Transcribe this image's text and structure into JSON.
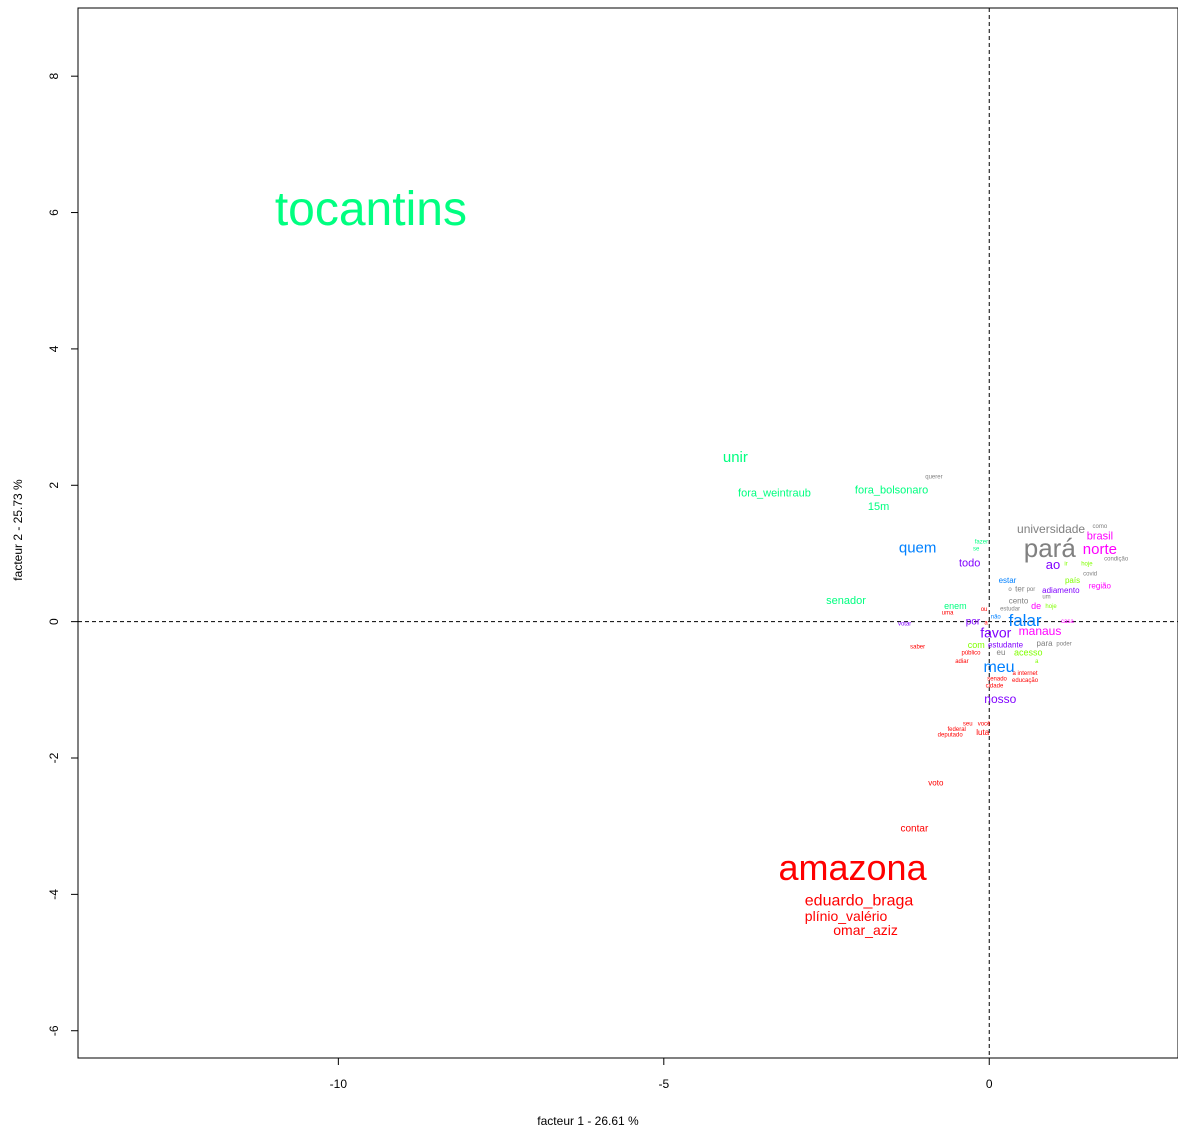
{
  "chart_data": {
    "type": "scatter",
    "xlabel": "facteur  1  - 26.61 %",
    "ylabel": "facteur  2  - 25.73 %",
    "xlim": [
      -14,
      2.9
    ],
    "ylim": [
      -6.4,
      9.0
    ],
    "xticks": [
      "-10",
      "-5",
      "0"
    ],
    "yticks": [
      "-6",
      "-4",
      "-2",
      "0",
      "2",
      "4",
      "6",
      "8"
    ],
    "grid": false,
    "reference_lines": [
      0,
      0
    ],
    "colors": {
      "red": "#ff0000",
      "green": "#00ff80",
      "blue": "#0080ff",
      "purple": "#8000ff",
      "magenta": "#ff00ff",
      "gray": "#808080",
      "lightgreen": "#80ff00"
    },
    "words": [
      {
        "label": "tocantins",
        "x": -9.5,
        "y": 6.0,
        "size": 48,
        "color": "#00ff80"
      },
      {
        "label": "unir",
        "x": -3.9,
        "y": 2.4,
        "size": 15,
        "color": "#00ff80"
      },
      {
        "label": "fora_weintraub",
        "x": -3.3,
        "y": 1.88,
        "size": 11,
        "color": "#00ff80"
      },
      {
        "label": "fora_bolsonaro",
        "x": -1.5,
        "y": 1.92,
        "size": 11,
        "color": "#00ff80"
      },
      {
        "label": "15m",
        "x": -1.7,
        "y": 1.68,
        "size": 11,
        "color": "#00ff80"
      },
      {
        "label": "querer",
        "x": -0.85,
        "y": 2.12,
        "size": 6,
        "color": "#808080"
      },
      {
        "label": "quem",
        "x": -1.1,
        "y": 1.07,
        "size": 15,
        "color": "#0080ff"
      },
      {
        "label": "fazer",
        "x": -0.12,
        "y": 1.17,
        "size": 6,
        "color": "#00ff80"
      },
      {
        "label": "se",
        "x": -0.2,
        "y": 1.07,
        "size": 6,
        "color": "#00ff80"
      },
      {
        "label": "todo",
        "x": -0.3,
        "y": 0.85,
        "size": 11,
        "color": "#8000ff"
      },
      {
        "label": "universidade",
        "x": 0.95,
        "y": 1.35,
        "size": 12,
        "color": "#808080"
      },
      {
        "label": "como",
        "x": 1.7,
        "y": 1.4,
        "size": 6,
        "color": "#808080"
      },
      {
        "label": "brasil",
        "x": 1.7,
        "y": 1.25,
        "size": 11,
        "color": "#ff00ff"
      },
      {
        "label": "pará",
        "x": 0.93,
        "y": 1.05,
        "size": 26,
        "color": "#808080"
      },
      {
        "label": "norte",
        "x": 1.7,
        "y": 1.05,
        "size": 15,
        "color": "#ff00ff"
      },
      {
        "label": "condição",
        "x": 1.95,
        "y": 0.92,
        "size": 6,
        "color": "#808080"
      },
      {
        "label": "ao",
        "x": 0.98,
        "y": 0.82,
        "size": 13,
        "color": "#8000ff"
      },
      {
        "label": "ir",
        "x": 1.18,
        "y": 0.85,
        "size": 6,
        "color": "#80ff00"
      },
      {
        "label": "hoje",
        "x": 1.5,
        "y": 0.85,
        "size": 6,
        "color": "#80ff00"
      },
      {
        "label": "covid",
        "x": 1.55,
        "y": 0.7,
        "size": 6,
        "color": "#808080"
      },
      {
        "label": "estar",
        "x": 0.28,
        "y": 0.6,
        "size": 8,
        "color": "#0080ff"
      },
      {
        "label": "país",
        "x": 1.28,
        "y": 0.6,
        "size": 8,
        "color": "#80ff00"
      },
      {
        "label": "região",
        "x": 1.7,
        "y": 0.52,
        "size": 8,
        "color": "#ff00ff"
      },
      {
        "label": "o",
        "x": 0.32,
        "y": 0.47,
        "size": 6,
        "color": "#808080"
      },
      {
        "label": "ter",
        "x": 0.47,
        "y": 0.47,
        "size": 8,
        "color": "#808080"
      },
      {
        "label": "por",
        "x": 0.64,
        "y": 0.47,
        "size": 6,
        "color": "#808080"
      },
      {
        "label": "adiamento",
        "x": 1.1,
        "y": 0.45,
        "size": 8,
        "color": "#8000ff"
      },
      {
        "label": "um",
        "x": 0.88,
        "y": 0.36,
        "size": 6,
        "color": "#808080"
      },
      {
        "label": "cento",
        "x": 0.45,
        "y": 0.3,
        "size": 8,
        "color": "#808080"
      },
      {
        "label": "senador",
        "x": -2.2,
        "y": 0.3,
        "size": 11,
        "color": "#00ff80"
      },
      {
        "label": "enem",
        "x": -0.52,
        "y": 0.22,
        "size": 9,
        "color": "#00ff80"
      },
      {
        "label": "ou",
        "x": -0.08,
        "y": 0.18,
        "size": 6,
        "color": "#ff0000"
      },
      {
        "label": "estudar",
        "x": 0.32,
        "y": 0.19,
        "size": 6,
        "color": "#808080"
      },
      {
        "label": "de",
        "x": 0.72,
        "y": 0.22,
        "size": 9,
        "color": "#ff00ff"
      },
      {
        "label": "hoje",
        "x": 0.95,
        "y": 0.22,
        "size": 6,
        "color": "#80ff00"
      },
      {
        "label": "uma",
        "x": -0.64,
        "y": 0.13,
        "size": 6,
        "color": "#ff0000"
      },
      {
        "label": "não",
        "x": 0.1,
        "y": 0.07,
        "size": 6,
        "color": "#0080ff"
      },
      {
        "label": "falar",
        "x": 0.55,
        "y": 0.0,
        "size": 17,
        "color": "#0080ff"
      },
      {
        "label": "casa",
        "x": 1.2,
        "y": 0.0,
        "size": 6,
        "color": "#ff00ff"
      },
      {
        "label": "votar",
        "x": -1.3,
        "y": -0.03,
        "size": 6,
        "color": "#8000ff"
      },
      {
        "label": "por",
        "x": -0.25,
        "y": 0.0,
        "size": 10,
        "color": "#8000ff"
      },
      {
        "label": "a",
        "x": -0.05,
        "y": -0.02,
        "size": 6,
        "color": "#ff0000"
      },
      {
        "label": "favor",
        "x": 0.1,
        "y": -0.18,
        "size": 14,
        "color": "#8000ff"
      },
      {
        "label": "manaus",
        "x": 0.78,
        "y": -0.15,
        "size": 12,
        "color": "#ff00ff"
      },
      {
        "label": "com",
        "x": -0.2,
        "y": -0.35,
        "size": 9,
        "color": "#80ff00"
      },
      {
        "label": "estudante",
        "x": 0.25,
        "y": -0.35,
        "size": 8,
        "color": "#8000ff"
      },
      {
        "label": "para",
        "x": 0.85,
        "y": -0.33,
        "size": 8,
        "color": "#808080"
      },
      {
        "label": "poder",
        "x": 1.15,
        "y": -0.33,
        "size": 6,
        "color": "#808080"
      },
      {
        "label": "saber",
        "x": -1.1,
        "y": -0.37,
        "size": 6,
        "color": "#ff0000"
      },
      {
        "label": "público",
        "x": -0.28,
        "y": -0.46,
        "size": 6,
        "color": "#ff0000"
      },
      {
        "label": "eu",
        "x": 0.18,
        "y": -0.46,
        "size": 8,
        "color": "#808080"
      },
      {
        "label": "acesso",
        "x": 0.6,
        "y": -0.46,
        "size": 9,
        "color": "#80ff00"
      },
      {
        "label": "adiar",
        "x": -0.42,
        "y": -0.58,
        "size": 6,
        "color": "#ff0000"
      },
      {
        "label": "a",
        "x": 0.73,
        "y": -0.58,
        "size": 6,
        "color": "#80ff00"
      },
      {
        "label": "meu",
        "x": 0.15,
        "y": -0.68,
        "size": 16,
        "color": "#0080ff"
      },
      {
        "label": "a internet",
        "x": 0.55,
        "y": -0.76,
        "size": 6,
        "color": "#ff0000"
      },
      {
        "label": "senado",
        "x": 0.12,
        "y": -0.84,
        "size": 6,
        "color": "#ff0000"
      },
      {
        "label": "educação",
        "x": 0.55,
        "y": -0.86,
        "size": 6,
        "color": "#ff0000"
      },
      {
        "label": "cidade",
        "x": 0.08,
        "y": -0.94,
        "size": 6,
        "color": "#ff0000"
      },
      {
        "label": "nosso",
        "x": 0.17,
        "y": -1.15,
        "size": 12,
        "color": "#8000ff"
      },
      {
        "label": "seu",
        "x": -0.33,
        "y": -1.5,
        "size": 6,
        "color": "#ff0000"
      },
      {
        "label": "você",
        "x": -0.08,
        "y": -1.5,
        "size": 6,
        "color": "#ff0000"
      },
      {
        "label": "federal",
        "x": -0.5,
        "y": -1.58,
        "size": 6,
        "color": "#ff0000"
      },
      {
        "label": "luta",
        "x": -0.1,
        "y": -1.63,
        "size": 8,
        "color": "#ff0000"
      },
      {
        "label": "deputado",
        "x": -0.6,
        "y": -1.66,
        "size": 6,
        "color": "#ff0000"
      },
      {
        "label": "voto",
        "x": -0.82,
        "y": -2.37,
        "size": 8,
        "color": "#ff0000"
      },
      {
        "label": "contar",
        "x": -1.15,
        "y": -3.04,
        "size": 10,
        "color": "#ff0000"
      },
      {
        "label": "amazona",
        "x": -2.1,
        "y": -3.65,
        "size": 36,
        "color": "#ff0000"
      },
      {
        "label": "eduardo_braga",
        "x": -2.0,
        "y": -4.1,
        "size": 16,
        "color": "#ff0000"
      },
      {
        "label": "plínio_valério",
        "x": -2.2,
        "y": -4.34,
        "size": 14,
        "color": "#ff0000"
      },
      {
        "label": "omar_aziz",
        "x": -1.9,
        "y": -4.54,
        "size": 14,
        "color": "#ff0000"
      }
    ]
  }
}
